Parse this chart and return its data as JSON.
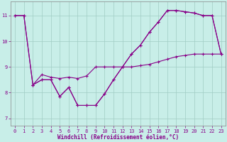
{
  "xlabel": "Windchill (Refroidissement éolien,°C)",
  "bg_color": "#c8eee8",
  "line_color": "#880088",
  "grid_color": "#a0ccc4",
  "xlim": [
    -0.5,
    23.5
  ],
  "ylim": [
    6.7,
    11.55
  ],
  "yticks": [
    7,
    8,
    9,
    10,
    11
  ],
  "xticks": [
    0,
    1,
    2,
    3,
    4,
    5,
    6,
    7,
    8,
    9,
    10,
    11,
    12,
    13,
    14,
    15,
    16,
    17,
    18,
    19,
    20,
    21,
    22,
    23
  ],
  "line1_x": [
    0,
    1,
    2,
    3,
    4,
    5,
    6,
    7,
    8,
    9,
    10,
    11,
    12,
    13,
    14,
    15,
    16,
    17,
    18,
    19,
    20,
    21,
    22,
    23
  ],
  "line1_y": [
    11.0,
    11.0,
    8.3,
    8.5,
    8.5,
    7.85,
    8.2,
    7.5,
    7.5,
    7.5,
    7.95,
    8.5,
    9.0,
    9.5,
    9.85,
    10.35,
    10.75,
    11.2,
    11.2,
    11.15,
    11.1,
    11.0,
    11.0,
    9.5
  ],
  "line2_x": [
    0,
    1,
    2,
    3,
    4,
    5,
    6,
    7,
    8,
    9,
    10,
    11,
    12,
    13,
    14,
    15,
    16,
    17,
    18,
    19,
    20,
    21,
    22,
    23
  ],
  "line2_y": [
    11.0,
    11.0,
    8.3,
    8.7,
    8.6,
    8.55,
    8.6,
    8.55,
    8.65,
    9.0,
    9.0,
    9.0,
    9.0,
    9.0,
    9.05,
    9.1,
    9.2,
    9.3,
    9.4,
    9.45,
    9.5,
    9.5,
    9.5,
    9.5
  ],
  "line3_x": [
    2,
    3,
    4,
    5,
    6,
    7,
    8,
    9,
    10,
    11,
    12,
    13,
    14,
    15,
    16,
    17,
    18,
    19,
    20,
    21,
    22,
    23
  ],
  "line3_y": [
    8.3,
    8.5,
    8.5,
    7.85,
    8.2,
    7.5,
    7.5,
    7.5,
    7.95,
    8.5,
    9.0,
    9.5,
    9.85,
    10.35,
    10.75,
    11.2,
    11.2,
    11.15,
    11.1,
    11.0,
    11.0,
    9.5
  ]
}
